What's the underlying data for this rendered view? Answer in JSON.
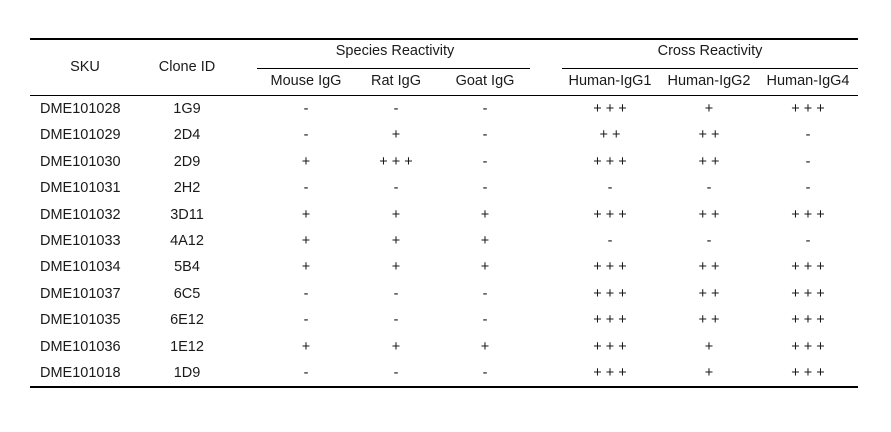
{
  "table": {
    "headers": {
      "sku": "SKU",
      "clone": "Clone ID",
      "species_group": "Species Reactivity",
      "cross_group": "Cross Reactivity",
      "species_cols": [
        "Mouse IgG",
        "Rat IgG",
        "Goat IgG"
      ],
      "cross_cols": [
        "Human-IgG1",
        "Human-IgG2",
        "Human-IgG4"
      ]
    },
    "rows": [
      {
        "sku": "DME101028",
        "clone": "1G9",
        "species": [
          "-",
          "-",
          "-"
        ],
        "cross": [
          "+ + +",
          "+",
          "+ + +"
        ]
      },
      {
        "sku": "DME101029",
        "clone": "2D4",
        "species": [
          "-",
          "+",
          "-"
        ],
        "cross": [
          "+ +",
          "+ +",
          "-"
        ]
      },
      {
        "sku": "DME101030",
        "clone": "2D9",
        "species": [
          "+",
          "+ + +",
          "-"
        ],
        "cross": [
          "+ + +",
          "+ +",
          "-"
        ]
      },
      {
        "sku": "DME101031",
        "clone": "2H2",
        "species": [
          "-",
          "-",
          "-"
        ],
        "cross": [
          "-",
          "-",
          "-"
        ]
      },
      {
        "sku": "DME101032",
        "clone": "3D11",
        "species": [
          "+",
          "+",
          "+"
        ],
        "cross": [
          "+ + +",
          "+ +",
          "+ + +"
        ]
      },
      {
        "sku": "DME101033",
        "clone": "4A12",
        "species": [
          "+",
          "+",
          "+"
        ],
        "cross": [
          "-",
          "-",
          "-"
        ]
      },
      {
        "sku": "DME101034",
        "clone": "5B4",
        "species": [
          "+",
          "+",
          "+"
        ],
        "cross": [
          "+ + +",
          "+ +",
          "+ + +"
        ]
      },
      {
        "sku": "DME101037",
        "clone": "6C5",
        "species": [
          "-",
          "-",
          "-"
        ],
        "cross": [
          "+ + +",
          "+ +",
          "+ + +"
        ]
      },
      {
        "sku": "DME101035",
        "clone": "6E12",
        "species": [
          "-",
          "-",
          "-"
        ],
        "cross": [
          "+ + +",
          "+ +",
          "+ + +"
        ]
      },
      {
        "sku": "DME101036",
        "clone": "1E12",
        "species": [
          "+",
          "+",
          "+"
        ],
        "cross": [
          "+ + +",
          "+",
          "+ + +"
        ]
      },
      {
        "sku": "DME101018",
        "clone": "1D9",
        "species": [
          "-",
          "-",
          "-"
        ],
        "cross": [
          "+ + +",
          "+",
          "+ + +"
        ]
      }
    ]
  }
}
